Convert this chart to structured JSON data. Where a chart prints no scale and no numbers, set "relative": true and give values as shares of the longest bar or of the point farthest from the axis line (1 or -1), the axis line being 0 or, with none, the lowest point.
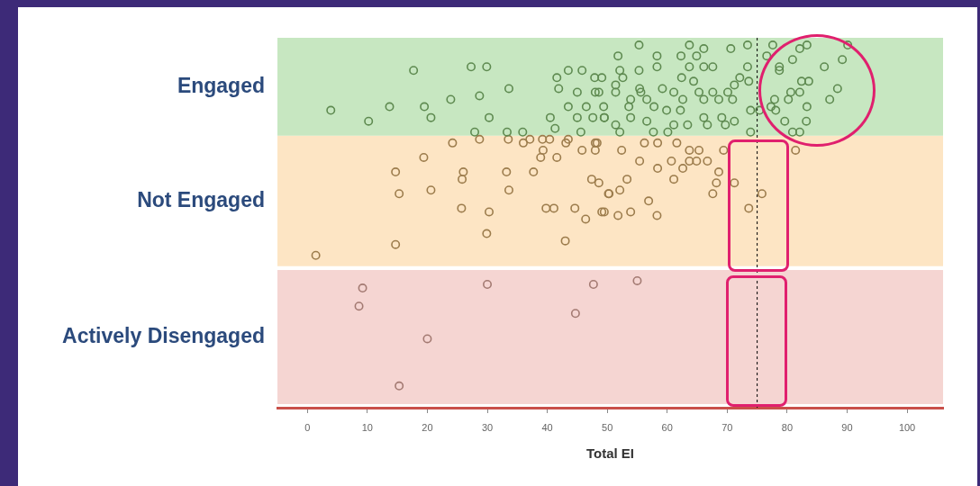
{
  "chart_data": {
    "type": "scatter",
    "xlabel": "Total EI",
    "xlim": [
      -5,
      106
    ],
    "xticks": [
      0,
      10,
      20,
      30,
      40,
      50,
      60,
      70,
      80,
      90,
      100
    ],
    "relative": true,
    "marker": "circle",
    "legend": false,
    "bands": [
      {
        "axis": "y",
        "from": 0.01,
        "to": 0.38,
        "color": "#f5d5d2",
        "label": "Actively Disengaged"
      },
      {
        "axis": "y",
        "from": 0.39,
        "to": 0.75,
        "color": "#fde5c4",
        "label": "Not Engaged"
      },
      {
        "axis": "y",
        "from": 0.75,
        "to": 1.02,
        "color": "#c7e7c1",
        "label": "Engaged"
      }
    ],
    "ref_lines": [
      {
        "axis": "x",
        "value": 75,
        "color": "#000000",
        "line_style": "dashed"
      }
    ],
    "series": [
      {
        "color": "#5e8a50",
        "x": [
          3.9,
          10.2,
          13.7,
          17.7,
          19.5,
          20.6,
          23.9,
          27.3,
          29.9,
          28.7,
          30.3,
          33.6,
          27.9,
          33.3,
          35.9,
          40.5,
          41.6,
          43.5,
          45.8,
          47.9,
          41.9,
          45.0,
          48.0,
          43.5,
          46.5,
          45.0,
          47.6,
          41.3,
          45.6,
          49.5,
          55.3,
          51.8,
          58.3,
          63.7,
          66.1,
          62.3,
          64.9,
          70.6,
          73.4,
          58.3,
          63.7,
          66.1,
          67.6,
          73.4,
          52.1,
          55.3,
          49.1,
          52.6,
          62.4,
          72.1,
          51.4,
          64.4,
          71.2,
          73.6,
          55.4,
          59.2,
          48.6,
          51.4,
          55.6,
          61.1,
          65.3,
          67.6,
          70.1,
          53.9,
          56.6,
          62.6,
          66.1,
          68.6,
          70.9,
          49.4,
          53.6,
          57.8,
          62.2,
          59.9,
          73.9,
          49.5,
          53.9,
          66.1,
          69.1,
          71.2,
          51.4,
          56.6,
          61.1,
          63.4,
          66.7,
          69.7,
          52.1,
          57.7,
          60.1,
          73.9,
          77.6,
          82.1,
          83.3,
          90.1,
          76.6,
          80.9,
          89.2,
          78.7,
          86.2,
          78.7,
          82.4,
          83.6,
          88.4,
          80.6,
          82.1,
          80.2,
          87.1,
          77.9,
          83.3,
          77.3,
          78.1,
          83.2,
          79.6,
          80.9,
          82.1,
          75.4
        ],
        "values": [
          0.82,
          0.79,
          0.83,
          0.93,
          0.83,
          0.8,
          0.85,
          0.94,
          0.94,
          0.86,
          0.8,
          0.88,
          0.76,
          0.76,
          0.76,
          0.8,
          0.91,
          0.93,
          0.93,
          0.91,
          0.88,
          0.87,
          0.87,
          0.83,
          0.83,
          0.8,
          0.8,
          0.77,
          0.76,
          0.8,
          1,
          0.97,
          0.97,
          1,
          0.99,
          0.97,
          0.97,
          0.99,
          1,
          0.94,
          0.94,
          0.94,
          0.94,
          0.94,
          0.93,
          0.93,
          0.91,
          0.91,
          0.91,
          0.91,
          0.89,
          0.9,
          0.89,
          0.9,
          0.88,
          0.88,
          0.87,
          0.87,
          0.87,
          0.87,
          0.87,
          0.87,
          0.87,
          0.85,
          0.85,
          0.85,
          0.85,
          0.85,
          0.85,
          0.83,
          0.83,
          0.83,
          0.82,
          0.82,
          0.82,
          0.8,
          0.8,
          0.8,
          0.8,
          0.79,
          0.78,
          0.79,
          0.78,
          0.78,
          0.78,
          0.78,
          0.76,
          0.76,
          0.76,
          0.76,
          1,
          0.99,
          1,
          1,
          0.97,
          0.96,
          0.96,
          0.94,
          0.94,
          0.93,
          0.9,
          0.9,
          0.88,
          0.87,
          0.87,
          0.85,
          0.85,
          0.85,
          0.83,
          0.83,
          0.82,
          0.79,
          0.79,
          0.76,
          0.76,
          0.82
        ]
      },
      {
        "color": "#9c7c4c",
        "x": [
          24.2,
          19.4,
          28.7,
          33.5,
          36.0,
          37.1,
          39.2,
          40.4,
          39.3,
          38.9,
          41.6,
          43.1,
          43.5,
          45.8,
          48.0,
          48.3,
          14.7,
          15.3,
          20.6,
          26.0,
          25.8,
          33.2,
          37.7,
          33.6,
          47.4,
          48.6,
          50.2,
          25.7,
          30.3,
          39.8,
          41.1,
          44.6,
          46.4,
          49.1,
          29.9,
          43.0,
          14.7,
          1.4,
          48.0,
          52.4,
          56.2,
          58.4,
          61.6,
          63.7,
          65.3,
          69.4,
          55.4,
          58.4,
          60.7,
          62.6,
          63.7,
          64.9,
          66.7,
          68.6,
          68.2,
          71.2,
          61.1,
          53.3,
          52.1,
          50.3,
          56.9,
          67.6,
          75.8,
          73.6,
          49.5,
          53.9,
          51.8,
          58.3,
          81.4
        ],
        "values": [
          0.73,
          0.69,
          0.74,
          0.74,
          0.73,
          0.74,
          0.74,
          0.74,
          0.71,
          0.69,
          0.69,
          0.73,
          0.74,
          0.71,
          0.71,
          0.73,
          0.65,
          0.59,
          0.6,
          0.65,
          0.63,
          0.65,
          0.65,
          0.6,
          0.63,
          0.62,
          0.59,
          0.55,
          0.54,
          0.55,
          0.55,
          0.55,
          0.52,
          0.54,
          0.48,
          0.46,
          0.45,
          0.42,
          0.73,
          0.71,
          0.73,
          0.73,
          0.73,
          0.71,
          0.71,
          0.71,
          0.68,
          0.66,
          0.68,
          0.66,
          0.68,
          0.68,
          0.68,
          0.65,
          0.62,
          0.62,
          0.63,
          0.63,
          0.6,
          0.59,
          0.57,
          0.59,
          0.59,
          0.55,
          0.54,
          0.54,
          0.53,
          0.53,
          0.71
        ]
      },
      {
        "color": "#a37a72",
        "x": [
          9.2,
          8.6,
          30.0,
          47.7,
          55.0,
          44.7,
          20.0,
          15.3
        ],
        "values": [
          0.33,
          0.28,
          0.34,
          0.34,
          0.35,
          0.26,
          0.19,
          0.06
        ]
      }
    ]
  }
}
